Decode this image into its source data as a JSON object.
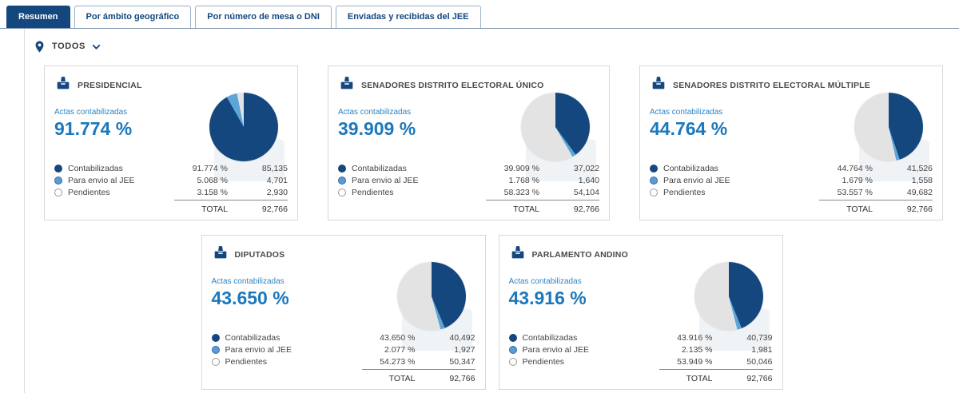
{
  "tabs": [
    {
      "label": "Resumen",
      "active": true
    },
    {
      "label": "Por ámbito geográfico",
      "active": false
    },
    {
      "label": "Por número de mesa o DNI",
      "active": false
    },
    {
      "label": "Enviadas y recibidas del JEE",
      "active": false
    }
  ],
  "filter": {
    "value": "TODOS"
  },
  "labels": {
    "actas": "Actas contabilizadas",
    "total": "TOTAL"
  },
  "icons": {
    "filter_pin": "location-pin-icon",
    "filter_chevron": "chevron-down-icon",
    "card_emblem": "ballot-box-icon",
    "legend_dot": "circle-dot-icon"
  },
  "colors": {
    "dark": "#14477e",
    "light": "#5da4d8",
    "gray": "#e3e3e3",
    "accent": "#1b78bc"
  },
  "cards": [
    {
      "row": 1,
      "title": "PRESIDENCIAL",
      "percent": "91.774 %",
      "pie": [
        91.774,
        5.068,
        3.158
      ],
      "rows": [
        {
          "label": "Contabilizadas",
          "pct": "91.774 %",
          "count": "85,135"
        },
        {
          "label": "Para envio al JEE",
          "pct": "5.068 %",
          "count": "4,701"
        },
        {
          "label": "Pendientes",
          "pct": "3.158 %",
          "count": "2,930"
        }
      ],
      "total": "92,766"
    },
    {
      "row": 1,
      "title": "SENADORES DISTRITO ELECTORAL ÚNICO",
      "percent": "39.909 %",
      "pie": [
        39.909,
        1.768,
        58.323
      ],
      "rows": [
        {
          "label": "Contabilizadas",
          "pct": "39.909 %",
          "count": "37,022"
        },
        {
          "label": "Para envio al JEE",
          "pct": "1.768 %",
          "count": "1,640"
        },
        {
          "label": "Pendientes",
          "pct": "58.323 %",
          "count": "54,104"
        }
      ],
      "total": "92,766"
    },
    {
      "row": 1,
      "title": "SENADORES DISTRITO ELECTORAL MÚLTIPLE",
      "percent": "44.764 %",
      "pie": [
        44.764,
        1.679,
        53.557
      ],
      "rows": [
        {
          "label": "Contabilizadas",
          "pct": "44.764 %",
          "count": "41,526"
        },
        {
          "label": "Para envio al JEE",
          "pct": "1.679 %",
          "count": "1,558"
        },
        {
          "label": "Pendientes",
          "pct": "53.557 %",
          "count": "49,682"
        }
      ],
      "total": "92,766"
    },
    {
      "row": 2,
      "title": "DIPUTADOS",
      "percent": "43.650 %",
      "pie": [
        43.65,
        2.077,
        54.273
      ],
      "rows": [
        {
          "label": "Contabilizadas",
          "pct": "43.650 %",
          "count": "40,492"
        },
        {
          "label": "Para envio al JEE",
          "pct": "2.077 %",
          "count": "1,927"
        },
        {
          "label": "Pendientes",
          "pct": "54.273 %",
          "count": "50,347"
        }
      ],
      "total": "92,766"
    },
    {
      "row": 2,
      "title": "PARLAMENTO ANDINO",
      "percent": "43.916 %",
      "pie": [
        43.916,
        2.135,
        53.949
      ],
      "rows": [
        {
          "label": "Contabilizadas",
          "pct": "43.916 %",
          "count": "40,739"
        },
        {
          "label": "Para envio al JEE",
          "pct": "2.135 %",
          "count": "1,981"
        },
        {
          "label": "Pendientes",
          "pct": "53.949 %",
          "count": "50,046"
        }
      ],
      "total": "92,766"
    }
  ]
}
